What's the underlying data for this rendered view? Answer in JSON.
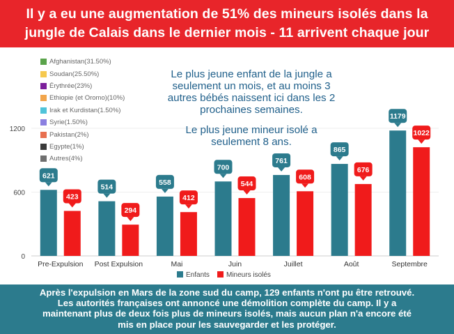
{
  "header": {
    "title_line1": "Il y a eu une augmentation de 51% des mineurs isolés dans la",
    "title_line2": "jungle de Calais dans le dernier mois - 11 arrivent chaque jour"
  },
  "legend": {
    "items": [
      {
        "label": "Afghanistan(31.50%)",
        "color": "#5aa34a"
      },
      {
        "label": "Soudan(25.50%)",
        "color": "#f6c94e"
      },
      {
        "label": "Érythrée(23%)",
        "color": "#7b1f9b"
      },
      {
        "label": "Ethiopie (et Oromo)(10%)",
        "color": "#f2a54b"
      },
      {
        "label": "Irak et Kurdistan(1.50%)",
        "color": "#4fc3d9"
      },
      {
        "label": "Syrie(1.50%)",
        "color": "#8a7fe0"
      },
      {
        "label": "Pakistan(2%)",
        "color": "#e87050"
      },
      {
        "label": "Egypte(1%)",
        "color": "#3a3a3a"
      },
      {
        "label": "Autres(4%)",
        "color": "#6f6f6f"
      }
    ]
  },
  "notes": {
    "note1_line1": "Le plus jeune enfant de la jungle a",
    "note1_line2": "seulement un mois, et au moins 3",
    "note1_line3": "autres bébés naissent ici dans les 2",
    "note1_line4": "prochaines semaines.",
    "note2_line1": "Le plus jeune mineur isolé a",
    "note2_line2": "seulement 8 ans."
  },
  "colors": {
    "enfants": "#2c7b8d",
    "mineurs": "#f01b1b",
    "banner": "#e8252a",
    "footer": "#2c7b8d",
    "note": "#1f5f8a"
  },
  "chart_data": {
    "type": "bar",
    "categories": [
      "Pre-Expulsion",
      "Post Expulsion",
      "Mai",
      "Juin",
      "Juillet",
      "Août",
      "Septembre"
    ],
    "series": [
      {
        "name": "Enfants",
        "values": [
          621,
          514,
          558,
          700,
          761,
          865,
          1179
        ]
      },
      {
        "name": "Mineurs isolés",
        "values": [
          423,
          294,
          412,
          544,
          608,
          676,
          1022
        ]
      }
    ],
    "y_ticks": [
      0,
      600,
      1200
    ],
    "ylim": [
      0,
      1200
    ],
    "legend_position": "bottom"
  },
  "footer": {
    "line1": "Après l'expulsion en Mars de la zone sud du camp, 129 enfants n'ont pu être retrouvé.",
    "line2": "Les autorités françaises ont annoncé une démolition complète du camp. Il y a",
    "line3": "maintenant plus de deux fois plus de mineurs isolés, mais aucun plan n'a encore été",
    "line4": "mis en place pour les sauvegarder et les protéger."
  }
}
